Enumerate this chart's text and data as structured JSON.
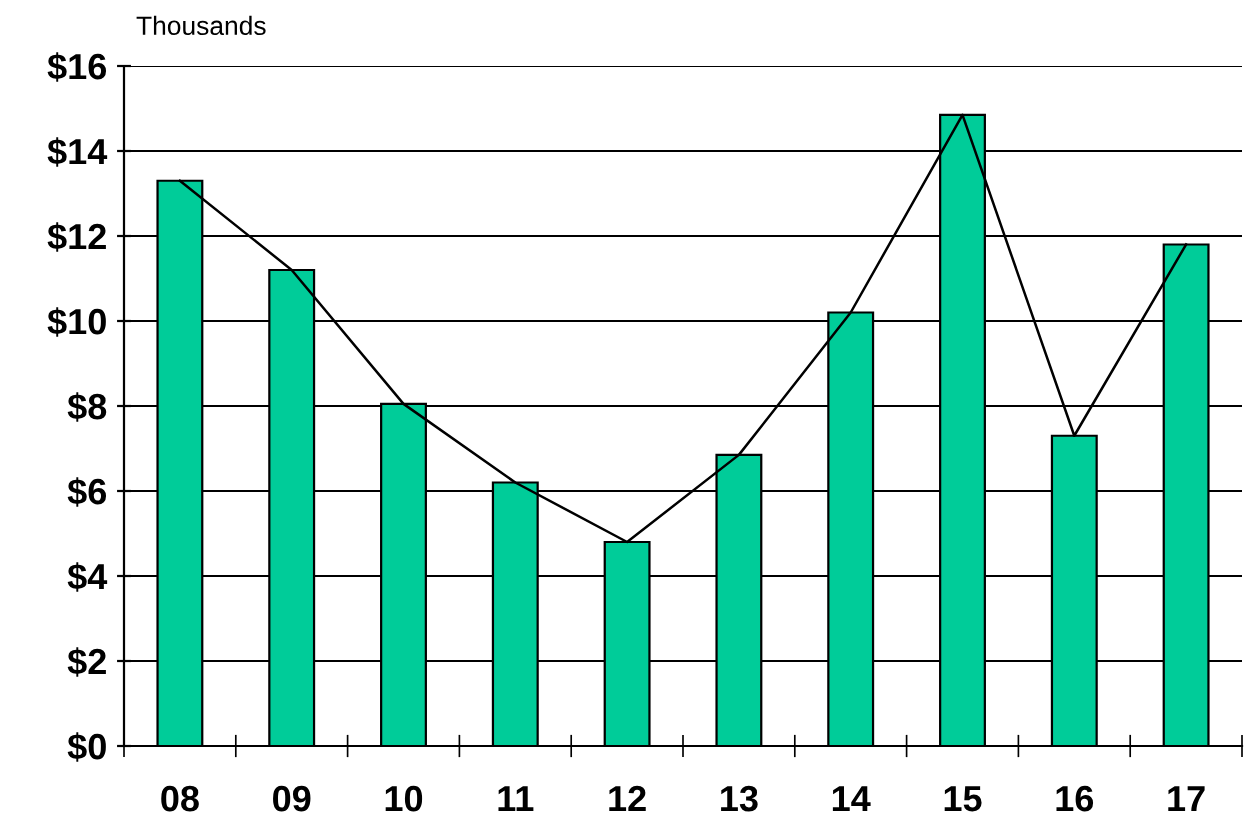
{
  "chart_data": {
    "type": "bar",
    "ylabel": "Thousands",
    "categories": [
      "08",
      "09",
      "10",
      "11",
      "12",
      "13",
      "14",
      "15",
      "16",
      "17"
    ],
    "series": [
      {
        "color": "#00cc99",
        "values": [
          13.3,
          11.2,
          8.05,
          6.2,
          4.8,
          6.85,
          10.2,
          14.85,
          7.3,
          11.8
        ]
      },
      {
        "type": "line",
        "color": "#000000",
        "values": [
          13.3,
          11.2,
          8.05,
          6.2,
          4.8,
          6.85,
          10.2,
          14.85,
          7.3,
          11.8
        ]
      }
    ],
    "ylim": [
      0,
      16
    ],
    "yticks": [
      {
        "value": 0,
        "label": "$0"
      },
      {
        "value": 2,
        "label": "$2"
      },
      {
        "value": 4,
        "label": "$4"
      },
      {
        "value": 6,
        "label": "$6"
      },
      {
        "value": 8,
        "label": "$8"
      },
      {
        "value": 10,
        "label": "$10"
      },
      {
        "value": 12,
        "label": "$12"
      },
      {
        "value": 14,
        "label": "$14"
      },
      {
        "value": 16,
        "label": "$16"
      }
    ],
    "grid": "y",
    "marker": "none",
    "line_style": "solid",
    "legend": false
  }
}
